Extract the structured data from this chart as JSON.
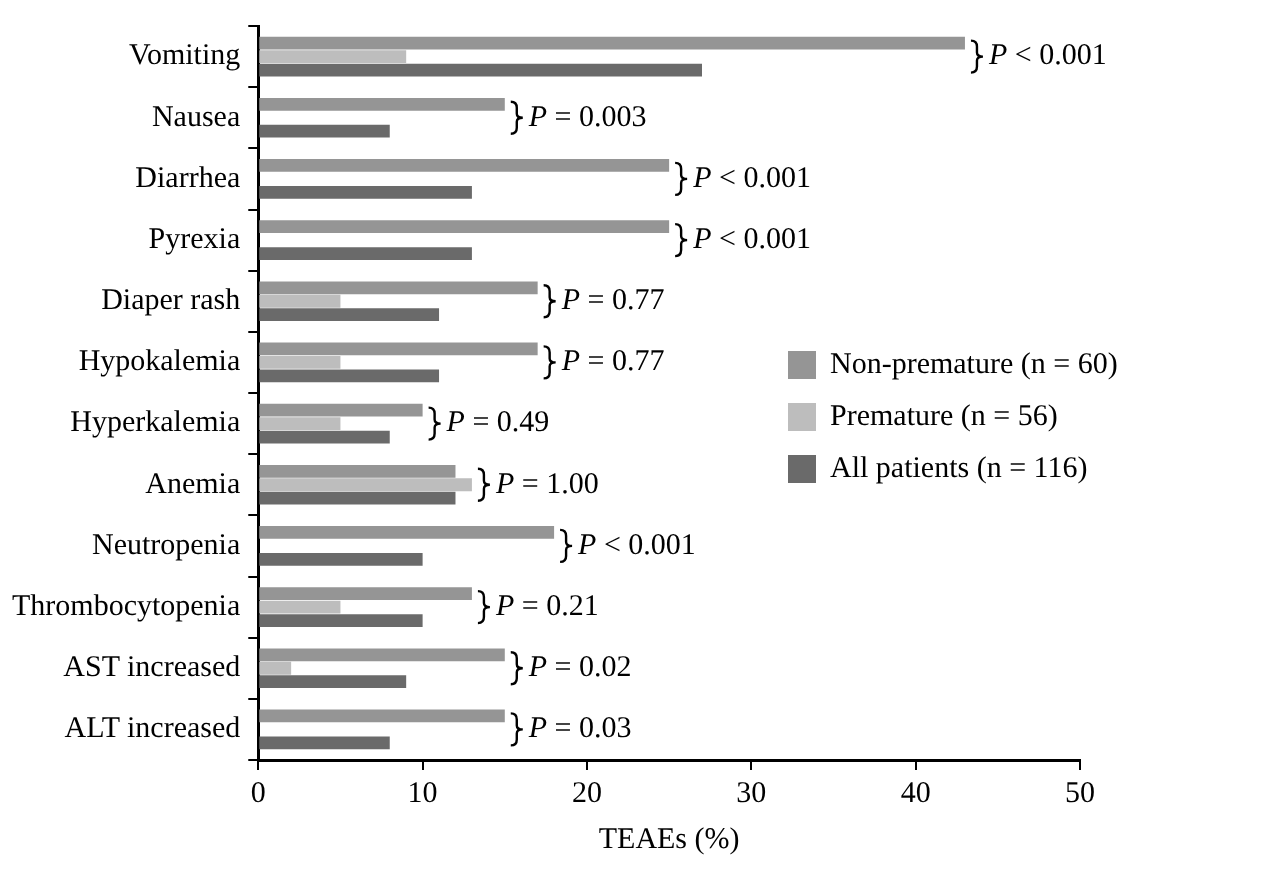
{
  "chart_data": {
    "type": "bar",
    "orientation": "horizontal",
    "xlabel": "TEAEs (%)",
    "categories": [
      "Vomiting",
      "Nausea",
      "Diarrhea",
      "Pyrexia",
      "Diaper rash",
      "Hypokalemia",
      "Hyperkalemia",
      "Anemia",
      "Neutropenia",
      "Thrombocytopenia",
      "AST increased",
      "ALT increased"
    ],
    "series": [
      {
        "name": "Non-premature (n = 60)",
        "color": "#959595",
        "values": [
          43,
          15,
          25,
          25,
          17,
          17,
          10,
          12,
          18,
          13,
          15,
          15
        ]
      },
      {
        "name": "Premature (n = 56)",
        "color": "#bdbdbd",
        "values": [
          9,
          0,
          0,
          0,
          5,
          5,
          5,
          13,
          0,
          5,
          2,
          0
        ]
      },
      {
        "name": "All patients (n = 116)",
        "color": "#6a6a6a",
        "values": [
          27,
          8,
          13,
          13,
          11,
          11,
          8,
          12,
          10,
          10,
          9,
          8
        ]
      }
    ],
    "xlim": [
      0,
      50
    ],
    "xticks": [
      0,
      10,
      20,
      30,
      40,
      50
    ],
    "grid": false,
    "legend": "right",
    "annotations": [
      {
        "text": "P < 0.001",
        "x": 43,
        "y": "Vomiting"
      },
      {
        "text": "P = 0.003",
        "x": 15,
        "y": "Nausea"
      },
      {
        "text": "P < 0.001",
        "x": 25,
        "y": "Diarrhea"
      },
      {
        "text": "P < 0.001",
        "x": 25,
        "y": "Pyrexia"
      },
      {
        "text": "P = 0.77",
        "x": 17,
        "y": "Diaper rash"
      },
      {
        "text": "P = 0.77",
        "x": 17,
        "y": "Hypokalemia"
      },
      {
        "text": "P = 0.49",
        "x": 10,
        "y": "Hyperkalemia"
      },
      {
        "text": "P = 1.00",
        "x": 13,
        "y": "Anemia"
      },
      {
        "text": "P < 0.001",
        "x": 18,
        "y": "Neutropenia"
      },
      {
        "text": "P = 0.21",
        "x": 13,
        "y": "Thrombocytopenia"
      },
      {
        "text": "P = 0.02",
        "x": 15,
        "y": "AST increased"
      },
      {
        "text": "P = 0.03",
        "x": 15,
        "y": "ALT increased"
      }
    ]
  }
}
